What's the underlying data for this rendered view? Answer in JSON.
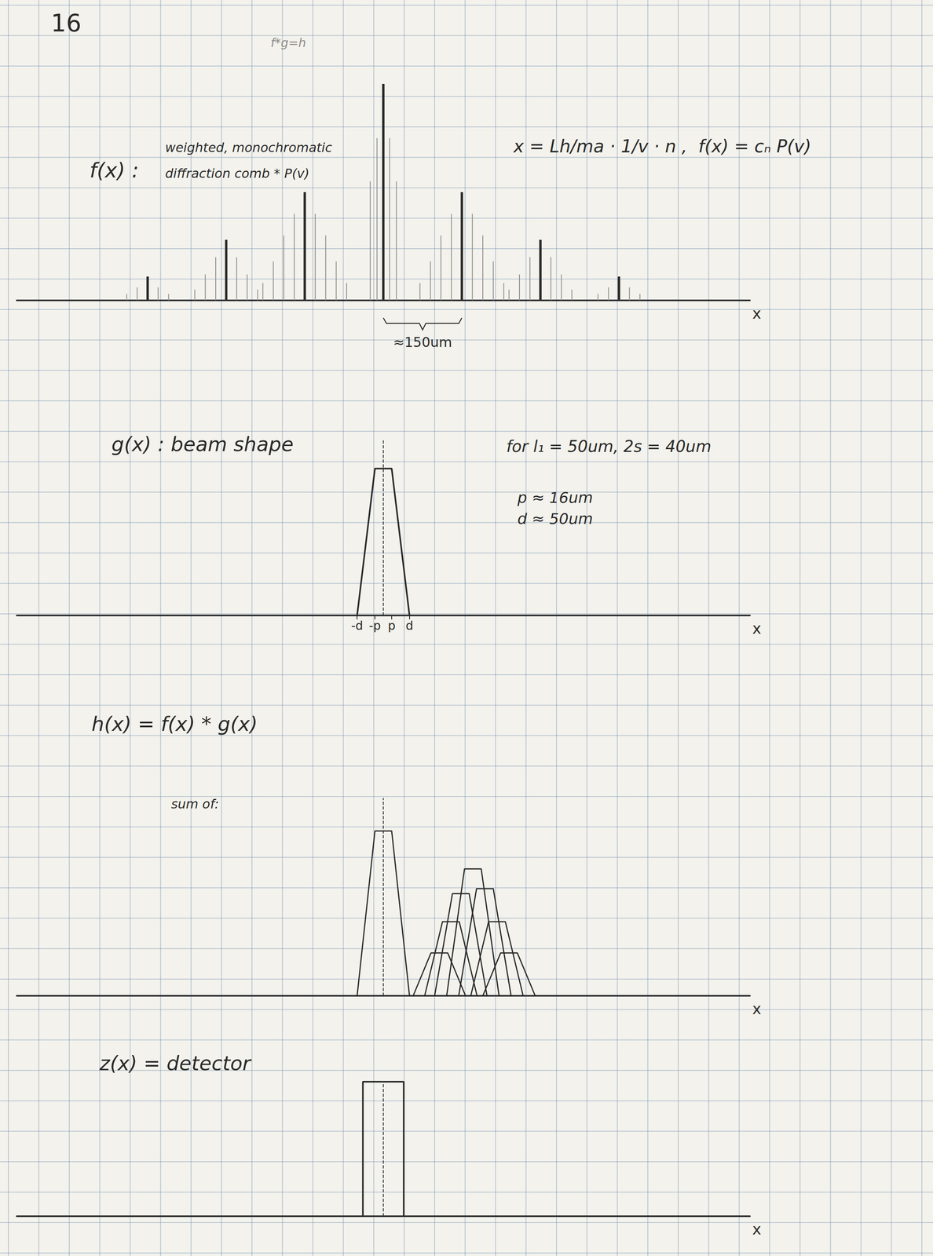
{
  "page_number": "16",
  "header_note": "f*g=h",
  "chart_data": [
    {
      "type": "comb",
      "label": "f(x) :",
      "label_lines": [
        "weighted, monochromatic",
        "diffraction comb * P(v)"
      ],
      "equation": "x = Lh/ma · 1/v · n ,  f(x) = cₙ P(v)",
      "axis_label": "x",
      "xlim": [
        -700,
        700
      ],
      "ylim": [
        0,
        1
      ],
      "xticks": [],
      "yticks": [],
      "tick_labels": false,
      "comb": {
        "x": [
          -450,
          -300,
          -150,
          0,
          150,
          300,
          450
        ],
        "values": [
          0.11,
          0.28,
          0.5,
          1,
          0.5,
          0.28,
          0.11
        ]
      },
      "spread": {
        "x": [
          -490,
          -470,
          -430,
          -410,
          -360,
          -340,
          -320,
          -280,
          -260,
          -240,
          -230,
          -210,
          -190,
          -170,
          -130,
          -110,
          -90,
          -70,
          -25,
          -12,
          12,
          25,
          70,
          90,
          110,
          130,
          170,
          190,
          210,
          230,
          240,
          260,
          280,
          320,
          340,
          360,
          410,
          430,
          470,
          490
        ],
        "values": [
          0.03,
          0.06,
          0.06,
          0.03,
          0.05,
          0.12,
          0.2,
          0.2,
          0.12,
          0.05,
          0.08,
          0.18,
          0.3,
          0.4,
          0.4,
          0.3,
          0.18,
          0.08,
          0.55,
          0.75,
          0.75,
          0.55,
          0.08,
          0.18,
          0.3,
          0.4,
          0.4,
          0.3,
          0.18,
          0.08,
          0.05,
          0.12,
          0.2,
          0.2,
          0.12,
          0.05,
          0.03,
          0.06,
          0.06,
          0.03
        ]
      },
      "spacing": {
        "text": "≈150um",
        "x": [
          0,
          150
        ]
      }
    },
    {
      "type": "trapezoid",
      "label": "g(x) : beam shape",
      "notes": [
        "for l₁ = 50um, 2s = 40um",
        "p ≈ 16um",
        "d ≈ 50um"
      ],
      "axis_label": "x",
      "xlim": [
        -700,
        700
      ],
      "ylim": [
        0,
        1.2
      ],
      "xticks": [
        {
          "value": -50,
          "label": "-d"
        },
        {
          "value": -16,
          "label": "-p"
        },
        {
          "value": 16,
          "label": "p"
        },
        {
          "value": 50,
          "label": "d"
        }
      ],
      "yticks": [],
      "tick_labels": "x",
      "center_line": 0,
      "x": [
        -50,
        -16,
        16,
        50
      ],
      "values": [
        0,
        1,
        1,
        0
      ]
    },
    {
      "type": "sum",
      "label": "h(x) = f(x) * g(x)",
      "note": "sum of:",
      "axis_label": "x",
      "xlim": [
        -700,
        700
      ],
      "ylim": [
        0,
        1.2
      ],
      "xticks": [],
      "yticks": [],
      "tick_labels": false,
      "center_line": 0,
      "components": [
        {
          "x": [
            -50,
            -16,
            16,
            50
          ],
          "values": [
            0,
            1,
            1,
            0
          ]
        },
        {
          "x": [
            57,
            91,
            123,
            157
          ],
          "values": [
            0,
            0.26,
            0.26,
            0
          ]
        },
        {
          "x": [
            79,
            113,
            145,
            179
          ],
          "values": [
            0,
            0.45,
            0.45,
            0
          ]
        },
        {
          "x": [
            98,
            132,
            164,
            198
          ],
          "values": [
            0,
            0.62,
            0.62,
            0
          ]
        },
        {
          "x": [
            121,
            155,
            187,
            221
          ],
          "values": [
            0,
            0.77,
            0.77,
            0
          ]
        },
        {
          "x": [
            144,
            178,
            210,
            244
          ],
          "values": [
            0,
            0.65,
            0.65,
            0
          ]
        },
        {
          "x": [
            167,
            201,
            233,
            267
          ],
          "values": [
            0,
            0.45,
            0.45,
            0
          ]
        },
        {
          "x": [
            190,
            224,
            256,
            290
          ],
          "values": [
            0,
            0.26,
            0.26,
            0
          ]
        }
      ]
    },
    {
      "type": "rectangle",
      "label": "z(x) = detector",
      "axis_label": "x",
      "xlim": [
        -700,
        700
      ],
      "ylim": [
        0,
        1
      ],
      "xticks": [],
      "yticks": [],
      "tick_labels": false,
      "center_line": 0,
      "x": [
        -39,
        -39,
        39,
        39
      ],
      "values": [
        0,
        1,
        1,
        0
      ]
    }
  ]
}
